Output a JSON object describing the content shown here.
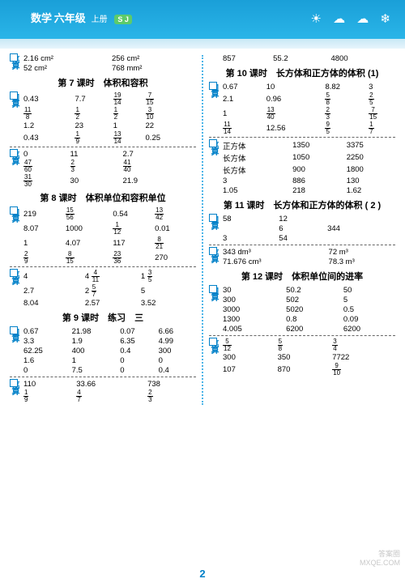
{
  "header": {
    "subject": "数学",
    "grade": "六年级",
    "vol": "上册",
    "badge": "S J"
  },
  "page_number": "2",
  "watermark": {
    "l1": "答案圈",
    "l2": "MXQE.COM"
  },
  "left": {
    "pre_bi": {
      "r": [
        [
          "2.16 cm²",
          "",
          "256 cm²"
        ],
        [
          "52 cm²",
          "",
          "768 mm²"
        ]
      ]
    },
    "s7": {
      "title": "第 7 课时　体积和容积",
      "kou": {
        "r": [
          [
            "0.43",
            "7.7",
            "19/14",
            "7/15"
          ],
          [
            "11/8",
            "1/2",
            "1/2",
            "3/10"
          ],
          [
            "1.2",
            "23",
            "1",
            "22"
          ],
          [
            "0.43",
            "1/9",
            "13/14",
            "0.25"
          ]
        ]
      },
      "bi": {
        "r": [
          [
            "0",
            "11",
            "",
            "2.7"
          ],
          [
            "47/60",
            "2/3",
            "",
            "41/40"
          ],
          [
            "31/30",
            "30",
            "",
            "21.9"
          ]
        ]
      }
    },
    "s8": {
      "title": "第 8 课时　体积单位和容积单位",
      "kou": {
        "r": [
          [
            "219",
            "15/56",
            "0.54",
            "13/42"
          ],
          [
            "8.07",
            "1000",
            "1/12",
            "0.01"
          ],
          [
            "1",
            "4.07",
            "117",
            "8/21"
          ],
          [
            "2/9",
            "8/15",
            "23/36",
            "270"
          ]
        ]
      },
      "bi": {
        "r": [
          [
            "4",
            "",
            "4 4/11",
            "1 3/5"
          ],
          [
            "2.7",
            "",
            "2 5/7",
            "5"
          ],
          [
            "8.04",
            "",
            "2.57",
            "3.52"
          ]
        ]
      }
    },
    "s9": {
      "title": "第 9 课时　练习　三",
      "kou": {
        "r": [
          [
            "0.67",
            "21.98",
            "0.07",
            "6.66"
          ],
          [
            "3.3",
            "1.9",
            "6.35",
            "4.99"
          ],
          [
            "62.25",
            "400",
            "0.4",
            "300"
          ],
          [
            "1.6",
            "1",
            "0",
            "0"
          ],
          [
            "0",
            "7.5",
            "0",
            "0.4"
          ]
        ]
      },
      "bi": {
        "r": [
          [
            "110",
            "",
            "33.66",
            "738"
          ],
          [
            "1/9",
            "",
            "4/7",
            "2/3"
          ]
        ]
      }
    }
  },
  "right": {
    "pre": {
      "r": [
        [
          "857",
          "55.2",
          "4800"
        ]
      ]
    },
    "s10": {
      "title": "第 10 课时　长方体和正方体的体积 (1)",
      "kou": {
        "r": [
          [
            "0.67",
            "10",
            "",
            "8.82",
            "3"
          ],
          [
            "2.1",
            "0.96",
            "",
            "5/8",
            "2/5"
          ],
          [
            "1",
            "13/40",
            "",
            "2/3",
            "7/15"
          ],
          [
            "11/14",
            "12.56",
            "",
            "9/5",
            "1/7"
          ]
        ]
      },
      "bi": {
        "r": [
          [
            "正方体",
            "",
            "1350",
            "",
            "3375"
          ],
          [
            "长方体",
            "",
            "1050",
            "",
            "2250"
          ],
          [
            "长方体",
            "",
            "900",
            "",
            "1800"
          ],
          [
            "3",
            "",
            "886",
            "",
            "130"
          ],
          [
            "1.05",
            "",
            "218",
            "",
            "1.62"
          ]
        ]
      }
    },
    "s11": {
      "title": "第 11 课时　长方体和正方体的体积 ( 2 )",
      "kou": {
        "r": [
          [
            "58",
            "",
            "12"
          ],
          [
            "",
            "",
            "6",
            "344"
          ],
          [
            "3",
            "",
            "54"
          ]
        ]
      },
      "bi": {
        "r": [
          [
            "343 dm³",
            "",
            "",
            "72 m³"
          ],
          [
            "71.676 cm³",
            "",
            "",
            "78.3 m³"
          ]
        ]
      }
    },
    "s12": {
      "title": "第 12 课时　体积单位间的进率",
      "kou": {
        "r": [
          [
            "30",
            "",
            "50.2",
            "",
            "50"
          ],
          [
            "300",
            "",
            "502",
            "",
            "5"
          ],
          [
            "3000",
            "",
            "5020",
            "",
            "0.5"
          ],
          [
            "1300",
            "",
            "0.8",
            "",
            "0.09"
          ],
          [
            "4.005",
            "",
            "6200",
            "",
            "6200"
          ]
        ]
      },
      "bi": {
        "r": [
          [
            "5/12",
            "",
            "5/8",
            "",
            "3/4"
          ],
          [
            "300",
            "",
            "350",
            "",
            "7722"
          ],
          [
            "107",
            "",
            "870",
            "",
            "9/10"
          ]
        ]
      }
    }
  }
}
